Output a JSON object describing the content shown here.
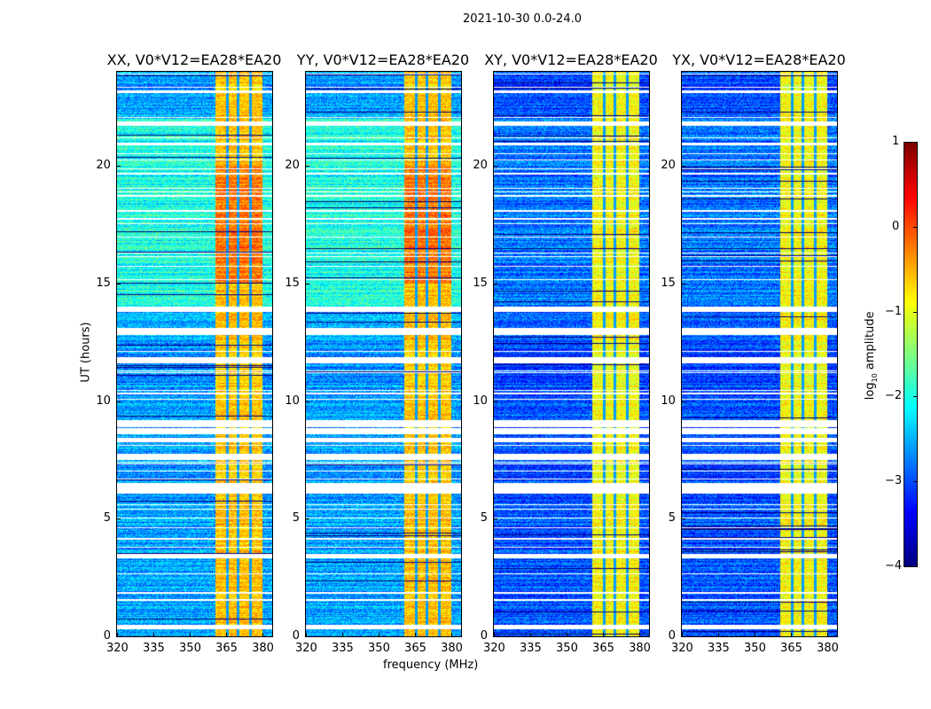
{
  "chart_data": {
    "type": "heatmap",
    "title": "2021-10-30 0.0-24.0",
    "xlabel": "frequency (MHz)",
    "ylabel": "UT (hours)",
    "xlim": [
      320,
      384
    ],
    "ylim": [
      0,
      24
    ],
    "xticks": [
      "320",
      "335",
      "350",
      "365",
      "380"
    ],
    "xtick_values": [
      320,
      335,
      350,
      365,
      380
    ],
    "yticks": [
      "0",
      "5",
      "10",
      "15",
      "20"
    ],
    "ytick_values": [
      0,
      5,
      10,
      15,
      20
    ],
    "panels": [
      {
        "title": "XX, V0*V12=EA28*EA20",
        "background_level": -2.6,
        "upper_background_level": -2.0
      },
      {
        "title": "YY, V0*V12=EA28*EA20",
        "background_level": -2.6,
        "upper_background_level": -2.0
      },
      {
        "title": "XY, V0*V12=EA28*EA20",
        "background_level": -3.0,
        "upper_background_level": -2.8
      },
      {
        "title": "YX, V0*V12=EA28*EA20",
        "background_level": -3.0,
        "upper_background_level": -2.8
      }
    ],
    "bright_band_mhz": [
      360.5,
      380
    ],
    "bright_band_level": -0.6,
    "band_dropout_channels_mhz": [
      365.5,
      370,
      375
    ],
    "flagged_gaps_hours": [
      [
        0.3,
        0.5
      ],
      [
        1.5,
        1.6
      ],
      [
        1.8,
        1.9
      ],
      [
        3.3,
        3.5
      ],
      [
        5.0,
        5.05
      ],
      [
        6.05,
        6.5
      ],
      [
        7.0,
        7.05
      ],
      [
        7.5,
        7.75
      ],
      [
        8.25,
        8.45
      ],
      [
        8.6,
        8.8
      ],
      [
        8.9,
        9.2
      ],
      [
        10.3,
        10.35
      ],
      [
        11.6,
        11.85
      ],
      [
        12.8,
        13.1
      ],
      [
        13.8,
        14.0
      ],
      [
        15.7,
        15.75
      ],
      [
        18.7,
        18.75
      ],
      [
        20.5,
        20.55
      ],
      [
        21.7,
        21.9
      ],
      [
        23.1,
        23.2
      ]
    ],
    "colorbar": {
      "label_main": "log",
      "label_sub": "10",
      "label_rest": " amplitude",
      "range": [
        -4,
        1
      ],
      "ticks": [
        "1",
        "0",
        "−1",
        "−2",
        "−3",
        "−4"
      ],
      "tick_values": [
        1,
        0,
        -1,
        -2,
        -3,
        -4
      ],
      "colormap": "jet"
    }
  }
}
